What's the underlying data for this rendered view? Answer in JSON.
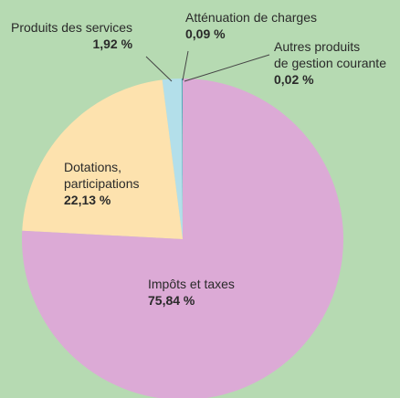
{
  "chart_data": {
    "type": "pie",
    "categories": [
      "Impôts et taxes",
      "Dotations,\nparticipations",
      "Produits des services",
      "Atténuation de charges",
      "Autres produits\nde gestion courante"
    ],
    "values": [
      75.84,
      22.13,
      1.92,
      0.09,
      0.02
    ],
    "value_labels": [
      "75,84 %",
      "22,13 %",
      "1,92 %",
      "0,09 %",
      "0,02 %"
    ],
    "colors": [
      "#dcaad6",
      "#fde2ae",
      "#b3dfea",
      "#3a9fc8",
      "#e6df22"
    ]
  }
}
